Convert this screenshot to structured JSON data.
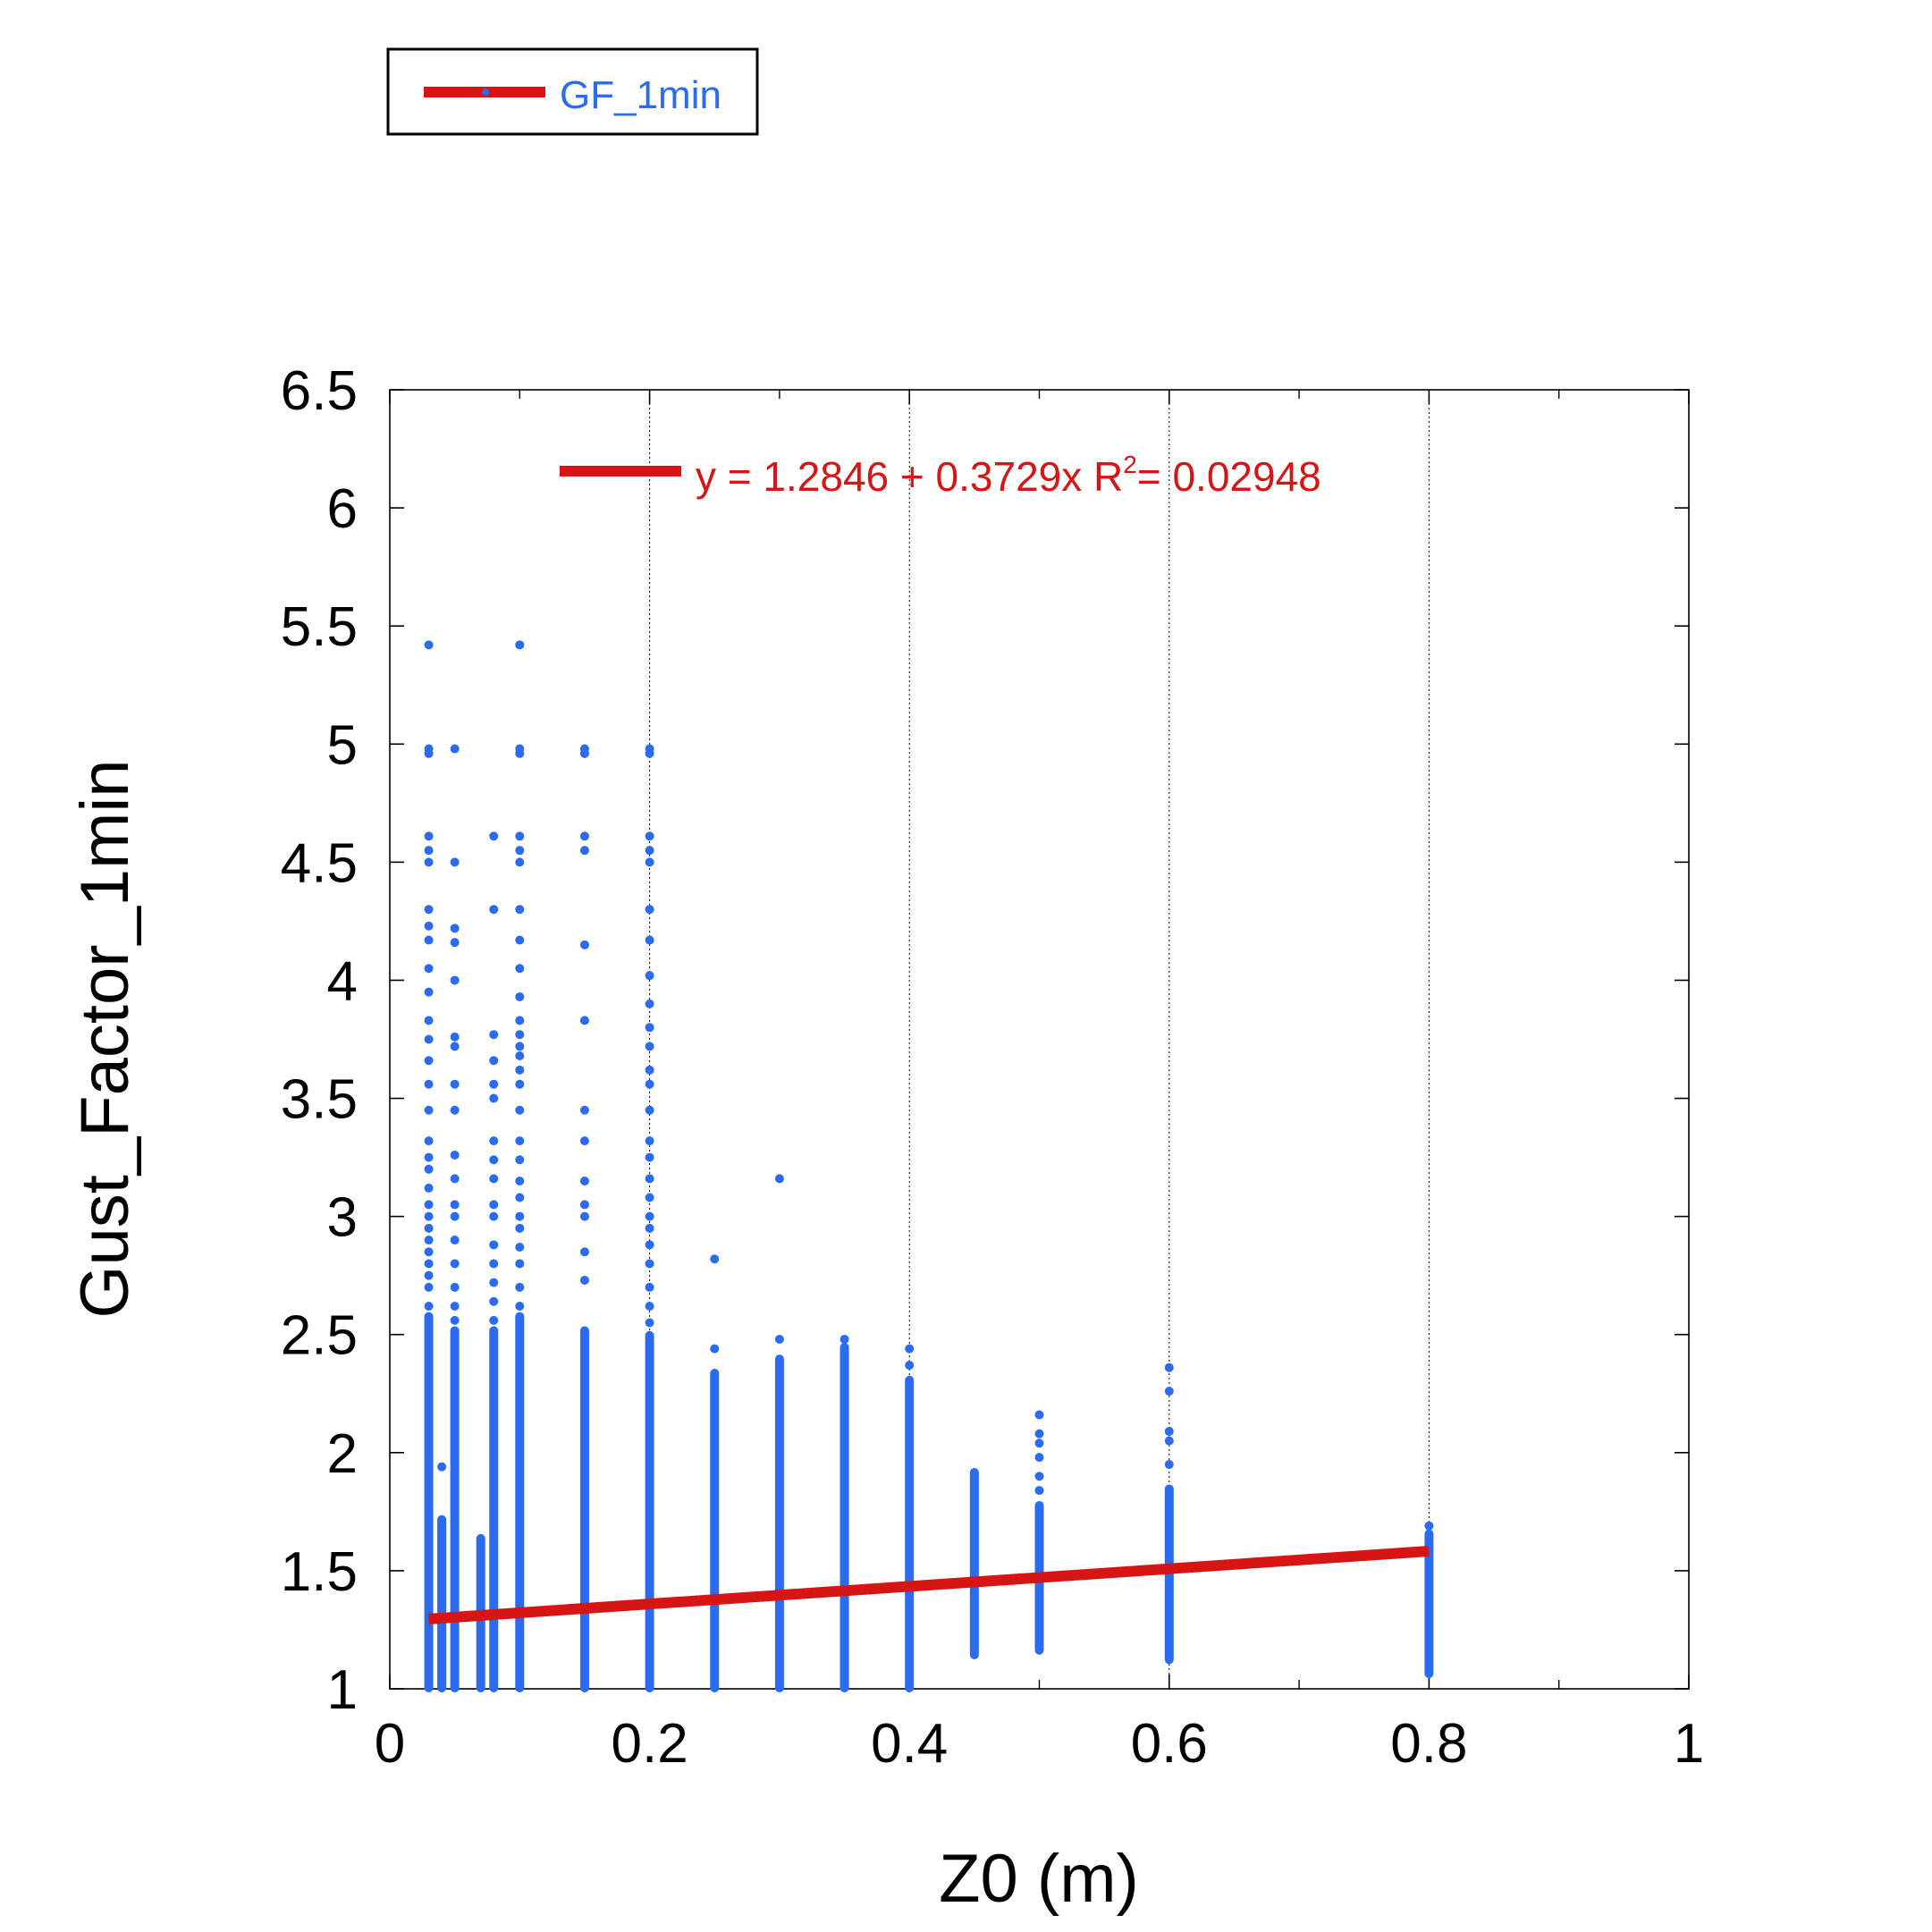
{
  "colors": {
    "points": "#2a6bef",
    "fit_line": "#d71515",
    "legend_text": "#2a6bef",
    "equation_text": "#d71515",
    "axis": "#000000",
    "grid": "#000000"
  },
  "legend": {
    "label": "GF_1min",
    "placement": "top-left outside plot"
  },
  "fit": {
    "equation_text": "y = 1.2846 + 0.3729x   R",
    "r2_superscript": "2",
    "r2_value_text": "= 0.02948",
    "intercept": 1.2846,
    "slope": 0.3729,
    "x_start": 0.03,
    "x_end": 0.8
  },
  "chart_data": {
    "type": "scatter",
    "title": "",
    "xlabel": "Z0 (m)",
    "ylabel": "Gust_Factor_1min",
    "xlim": [
      0,
      1
    ],
    "ylim": [
      1,
      6.5
    ],
    "x_ticks": [
      "0",
      "0.2",
      "0.4",
      "0.6",
      "0.8",
      "1"
    ],
    "x_tick_values": [
      0,
      0.2,
      0.4,
      0.6,
      0.8,
      1
    ],
    "x_minor_ticks": [
      0.1,
      0.3,
      0.5,
      0.7,
      0.9
    ],
    "y_ticks": [
      "1",
      "1.5",
      "2",
      "2.5",
      "3",
      "3.5",
      "4",
      "4.5",
      "5",
      "5.5",
      "6",
      "6.5"
    ],
    "y_tick_values": [
      1,
      1.5,
      2,
      2.5,
      3,
      3.5,
      4,
      4.5,
      5,
      5.5,
      6,
      6.5
    ],
    "grid": "vertical dotted lines at x = 0.2, 0.4, 0.6, 0.8",
    "grid_x": [
      0.2,
      0.4,
      0.6,
      0.8
    ],
    "series": [
      {
        "name": "GF_1min",
        "kind": "points",
        "columns": [
          {
            "x": 0.03,
            "dense": [
              1.0,
              2.58
            ],
            "points": [
              2.62,
              2.7,
              2.75,
              2.8,
              2.85,
              2.9,
              2.95,
              3.0,
              3.05,
              3.12,
              3.2,
              3.25,
              3.32,
              3.45,
              3.56,
              3.66,
              3.75,
              3.83,
              3.95,
              4.05,
              4.17,
              4.23,
              4.3,
              4.5,
              4.55,
              4.61,
              4.96,
              4.98,
              5.42
            ]
          },
          {
            "x": 0.04,
            "dense": [
              1.0,
              1.72
            ],
            "points": [
              1.94
            ]
          },
          {
            "x": 0.05,
            "dense": [
              1.0,
              2.52
            ],
            "points": [
              2.56,
              2.62,
              2.7,
              2.8,
              2.9,
              3.0,
              3.05,
              3.16,
              3.26,
              3.45,
              3.56,
              3.72,
              3.76,
              4.0,
              4.16,
              4.22,
              4.5,
              4.98
            ]
          },
          {
            "x": 0.07,
            "dense": [
              1.0,
              1.64
            ],
            "points": []
          },
          {
            "x": 0.08,
            "dense": [
              1.0,
              2.52
            ],
            "points": [
              2.56,
              2.64,
              2.72,
              2.8,
              2.88,
              3.0,
              3.05,
              3.16,
              3.24,
              3.32,
              3.5,
              3.56,
              3.66,
              3.77,
              4.3,
              4.61
            ]
          },
          {
            "x": 0.1,
            "dense": [
              1.0,
              2.58
            ],
            "points": [
              2.62,
              2.7,
              2.8,
              2.87,
              2.95,
              3.0,
              3.08,
              3.15,
              3.24,
              3.32,
              3.45,
              3.56,
              3.62,
              3.68,
              3.72,
              3.77,
              3.83,
              3.93,
              4.05,
              4.17,
              4.3,
              4.5,
              4.55,
              4.61,
              4.96,
              4.98,
              5.42
            ]
          },
          {
            "x": 0.15,
            "dense": [
              1.0,
              2.52
            ],
            "points": [
              2.73,
              2.85,
              3.0,
              3.05,
              3.15,
              3.32,
              3.45,
              3.83,
              4.15,
              4.55,
              4.61,
              4.96,
              4.98
            ]
          },
          {
            "x": 0.2,
            "dense": [
              1.0,
              2.5
            ],
            "points": [
              2.55,
              2.62,
              2.7,
              2.8,
              2.88,
              2.95,
              3.0,
              3.08,
              3.16,
              3.25,
              3.32,
              3.45,
              3.56,
              3.62,
              3.72,
              3.8,
              3.9,
              4.02,
              4.17,
              4.3,
              4.5,
              4.55,
              4.61,
              4.96,
              4.98
            ]
          },
          {
            "x": 0.25,
            "dense": [
              1.0,
              2.34
            ],
            "points": [
              2.44,
              2.82
            ]
          },
          {
            "x": 0.3,
            "dense": [
              1.0,
              2.4
            ],
            "points": [
              2.48,
              3.16
            ]
          },
          {
            "x": 0.35,
            "dense": [
              1.0,
              2.45
            ],
            "points": [
              2.48
            ]
          },
          {
            "x": 0.4,
            "dense": [
              1.0,
              2.31
            ],
            "points": [
              2.37,
              2.44
            ]
          },
          {
            "x": 0.45,
            "dense": [
              1.14,
              1.92
            ],
            "points": []
          },
          {
            "x": 0.5,
            "dense": [
              1.16,
              1.78
            ],
            "points": [
              1.84,
              1.9,
              1.98,
              2.04,
              2.08,
              2.16
            ]
          },
          {
            "x": 0.6,
            "dense": [
              1.12,
              1.85
            ],
            "points": [
              1.95,
              2.05,
              2.09,
              2.26,
              2.36
            ]
          },
          {
            "x": 0.8,
            "dense": [
              1.06,
              1.66
            ],
            "points": [
              1.69
            ]
          }
        ]
      },
      {
        "name": "",
        "kind": "linear-fit",
        "x": [
          0.03,
          0.8
        ],
        "y": [
          1.2958,
          1.5829
        ]
      }
    ]
  }
}
